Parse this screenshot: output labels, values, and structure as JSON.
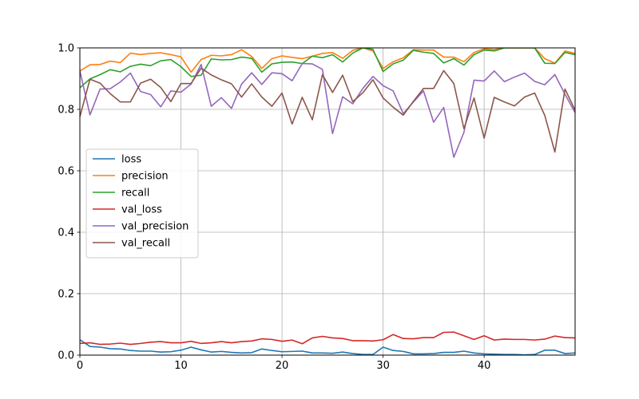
{
  "chart_data": {
    "type": "line",
    "title": "",
    "xlabel": "",
    "ylabel": "",
    "xlim": [
      0,
      49
    ],
    "ylim": [
      0,
      1.0
    ],
    "xticks": [
      0,
      10,
      20,
      30,
      40
    ],
    "yticks": [
      0.0,
      0.2,
      0.4,
      0.6,
      0.8,
      1.0
    ],
    "xtick_labels": [
      "0",
      "10",
      "20",
      "30",
      "40"
    ],
    "ytick_labels": [
      "0.0",
      "0.2",
      "0.4",
      "0.6",
      "0.8",
      "1.0"
    ],
    "grid": true,
    "legend_position": "center-left",
    "x": [
      0,
      1,
      2,
      3,
      4,
      5,
      6,
      7,
      8,
      9,
      10,
      11,
      12,
      13,
      14,
      15,
      16,
      17,
      18,
      19,
      20,
      21,
      22,
      23,
      24,
      25,
      26,
      27,
      28,
      29,
      30,
      31,
      32,
      33,
      34,
      35,
      36,
      37,
      38,
      39,
      40,
      41,
      42,
      43,
      44,
      45,
      46,
      47,
      48,
      49
    ],
    "series": [
      {
        "name": "loss",
        "color": "#1f77b4",
        "values": [
          0.05,
          0.028,
          0.026,
          0.021,
          0.02,
          0.015,
          0.013,
          0.013,
          0.01,
          0.011,
          0.016,
          0.026,
          0.017,
          0.01,
          0.012,
          0.009,
          0.007,
          0.008,
          0.02,
          0.015,
          0.011,
          0.012,
          0.013,
          0.007,
          0.007,
          0.006,
          0.01,
          0.005,
          0.002,
          0.002,
          0.026,
          0.015,
          0.012,
          0.004,
          0.004,
          0.005,
          0.009,
          0.009,
          0.013,
          0.007,
          0.004,
          0.003,
          0.002,
          0.002,
          0.001,
          0.002,
          0.016,
          0.016,
          0.005,
          0.007
        ]
      },
      {
        "name": "precision",
        "color": "#ff7f0e",
        "values": [
          0.925,
          0.945,
          0.946,
          0.957,
          0.952,
          0.983,
          0.978,
          0.982,
          0.984,
          0.978,
          0.971,
          0.921,
          0.962,
          0.976,
          0.974,
          0.978,
          0.994,
          0.972,
          0.933,
          0.965,
          0.974,
          0.969,
          0.965,
          0.973,
          0.982,
          0.985,
          0.966,
          0.992,
          1.0,
          0.99,
          0.933,
          0.955,
          0.968,
          0.994,
          0.993,
          0.993,
          0.97,
          0.97,
          0.955,
          0.985,
          0.997,
          0.995,
          1.0,
          1.0,
          1.0,
          1.0,
          0.965,
          0.95,
          0.99,
          0.982
        ]
      },
      {
        "name": "recall",
        "color": "#2ca02c",
        "values": [
          0.87,
          0.899,
          0.913,
          0.929,
          0.922,
          0.94,
          0.947,
          0.942,
          0.958,
          0.962,
          0.939,
          0.907,
          0.911,
          0.964,
          0.961,
          0.962,
          0.97,
          0.966,
          0.921,
          0.948,
          0.953,
          0.954,
          0.949,
          0.973,
          0.968,
          0.978,
          0.954,
          0.983,
          1.0,
          0.995,
          0.923,
          0.948,
          0.96,
          0.992,
          0.986,
          0.982,
          0.951,
          0.965,
          0.944,
          0.978,
          0.993,
          0.99,
          1.0,
          1.0,
          1.0,
          1.0,
          0.95,
          0.949,
          0.985,
          0.978
        ]
      },
      {
        "name": "val_loss",
        "color": "#d62728",
        "values": [
          0.038,
          0.04,
          0.035,
          0.036,
          0.039,
          0.035,
          0.038,
          0.042,
          0.044,
          0.04,
          0.04,
          0.045,
          0.038,
          0.04,
          0.044,
          0.04,
          0.044,
          0.046,
          0.053,
          0.051,
          0.045,
          0.049,
          0.037,
          0.056,
          0.061,
          0.056,
          0.054,
          0.047,
          0.047,
          0.046,
          0.05,
          0.067,
          0.054,
          0.053,
          0.057,
          0.057,
          0.074,
          0.075,
          0.063,
          0.051,
          0.063,
          0.049,
          0.052,
          0.051,
          0.051,
          0.049,
          0.052,
          0.062,
          0.057,
          0.056
        ]
      },
      {
        "name": "val_precision",
        "color": "#9467bd",
        "values": [
          0.925,
          0.782,
          0.866,
          0.867,
          0.889,
          0.918,
          0.858,
          0.848,
          0.808,
          0.86,
          0.856,
          0.882,
          0.946,
          0.81,
          0.838,
          0.803,
          0.882,
          0.919,
          0.881,
          0.919,
          0.916,
          0.893,
          0.949,
          0.948,
          0.93,
          0.721,
          0.841,
          0.818,
          0.868,
          0.907,
          0.877,
          0.86,
          0.786,
          0.824,
          0.86,
          0.758,
          0.806,
          0.644,
          0.725,
          0.895,
          0.892,
          0.925,
          0.89,
          0.905,
          0.918,
          0.891,
          0.88,
          0.913,
          0.849,
          0.789
        ]
      },
      {
        "name": "val_recall",
        "color": "#8c564b",
        "values": [
          0.776,
          0.898,
          0.885,
          0.851,
          0.824,
          0.824,
          0.885,
          0.898,
          0.871,
          0.825,
          0.884,
          0.884,
          0.934,
          0.912,
          0.896,
          0.883,
          0.84,
          0.883,
          0.84,
          0.81,
          0.853,
          0.752,
          0.839,
          0.766,
          0.913,
          0.855,
          0.911,
          0.825,
          0.854,
          0.896,
          0.837,
          0.807,
          0.781,
          0.826,
          0.868,
          0.868,
          0.926,
          0.884,
          0.737,
          0.837,
          0.706,
          0.839,
          0.824,
          0.811,
          0.84,
          0.853,
          0.78,
          0.661,
          0.866,
          0.797
        ]
      }
    ]
  }
}
